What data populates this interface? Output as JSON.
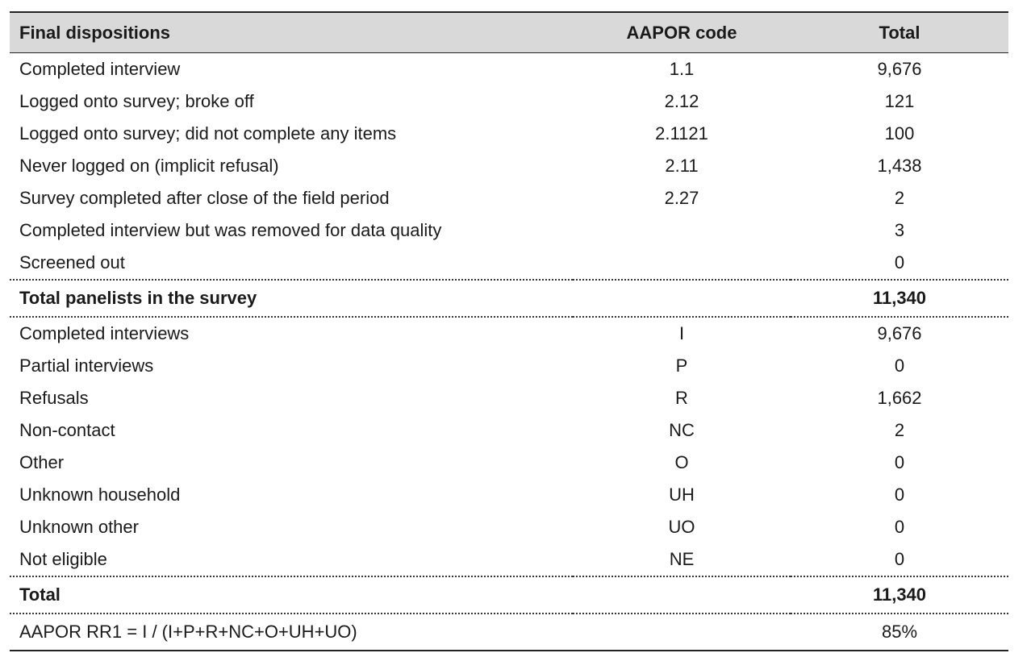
{
  "headers": {
    "label": "Final dispositions",
    "code": "AAPOR code",
    "total": "Total"
  },
  "dispositions": [
    {
      "label": "Completed interview",
      "code": "1.1",
      "total": "9,676"
    },
    {
      "label": "Logged onto survey; broke off",
      "code": "2.12",
      "total": "121"
    },
    {
      "label": "Logged onto survey; did not complete any items",
      "code": "2.1121",
      "total": "100"
    },
    {
      "label": "Never logged on (implicit refusal)",
      "code": "2.11",
      "total": "1,438"
    },
    {
      "label": "Survey completed after close of the field period",
      "code": "2.27",
      "total": "2"
    },
    {
      "label": "Completed interview but was removed for data quality",
      "code": "",
      "total": "3"
    },
    {
      "label": "Screened out",
      "code": "",
      "total": "0"
    }
  ],
  "panel_total": {
    "label": "Total panelists in the survey",
    "total": "11,340"
  },
  "categories": [
    {
      "label": "Completed interviews",
      "code": "I",
      "total": "9,676"
    },
    {
      "label": "Partial interviews",
      "code": "P",
      "total": "0"
    },
    {
      "label": "Refusals",
      "code": "R",
      "total": "1,662"
    },
    {
      "label": "Non-contact",
      "code": "NC",
      "total": "2"
    },
    {
      "label": "Other",
      "code": "O",
      "total": "0"
    },
    {
      "label": "Unknown household",
      "code": "UH",
      "total": "0"
    },
    {
      "label": "Unknown other",
      "code": "UO",
      "total": "0"
    },
    {
      "label": "Not eligible",
      "code": "NE",
      "total": "0"
    }
  ],
  "grand_total": {
    "label": "Total",
    "total": "11,340"
  },
  "response_rate": {
    "label": "AAPOR RR1 = I / (I+P+R+NC+O+UH+UO)",
    "total": "85%"
  }
}
